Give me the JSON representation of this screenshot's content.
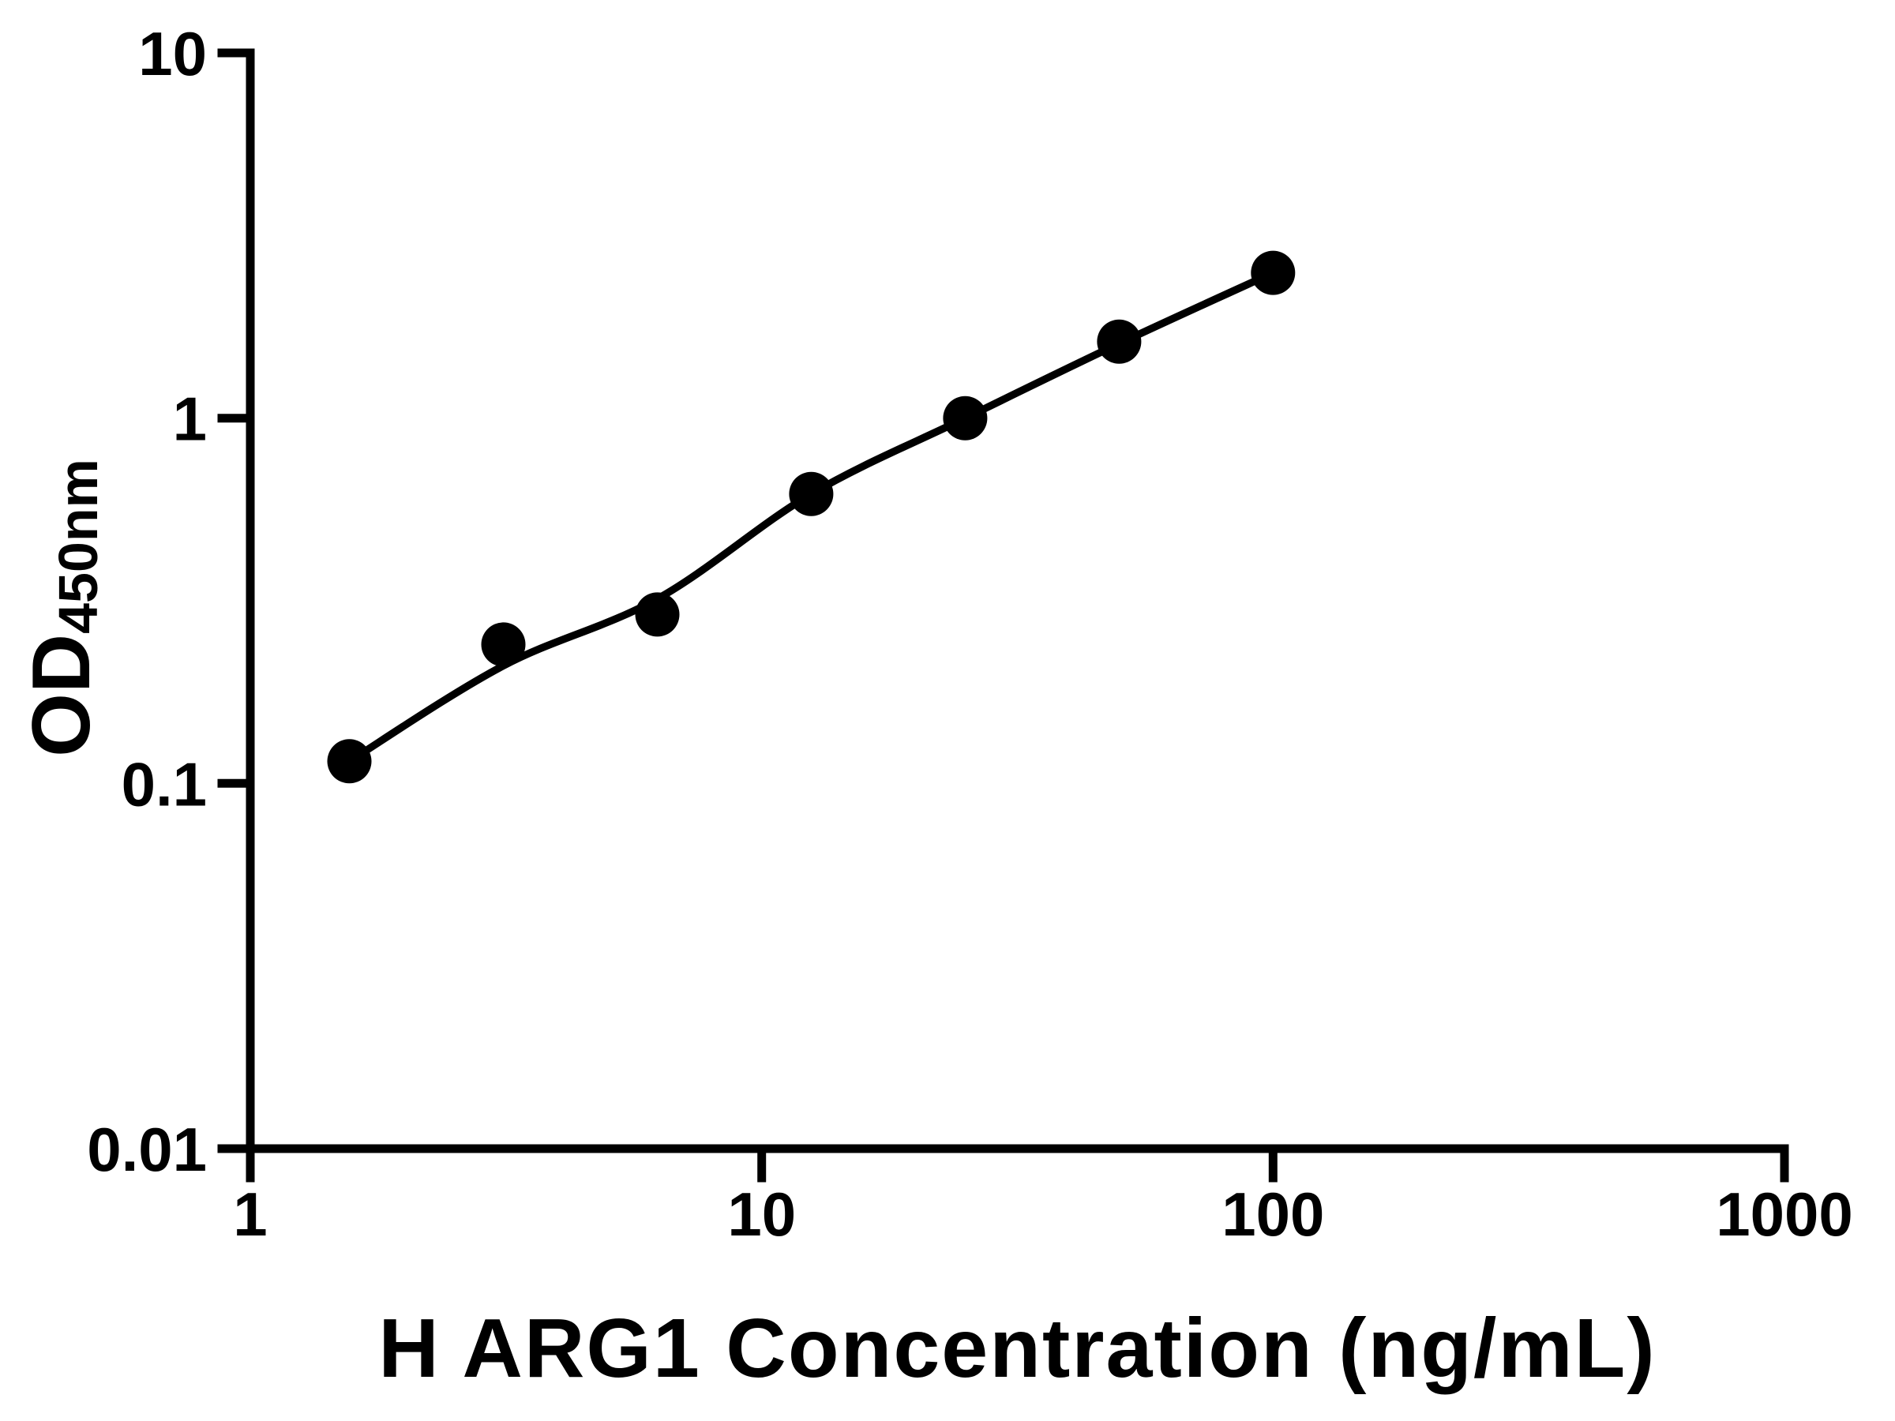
{
  "figure": {
    "background_color": "#ffffff",
    "foreground_color": "#000000"
  },
  "chart_data": {
    "type": "scatter",
    "title": "",
    "xlabel": "H ARG1 Concentration (ng/mL)",
    "ylabel_base": "OD",
    "ylabel_subscript": "450nm",
    "x_scale": "log10",
    "y_scale": "log10",
    "xlim": [
      1,
      1000
    ],
    "ylim": [
      0.01,
      10
    ],
    "grid": false,
    "legend": null,
    "x_ticks": [
      {
        "value": 1,
        "label": "1"
      },
      {
        "value": 10,
        "label": "10"
      },
      {
        "value": 100,
        "label": "100"
      },
      {
        "value": 1000,
        "label": "1000"
      }
    ],
    "y_ticks": [
      {
        "value": 10,
        "label": "10"
      },
      {
        "value": 1,
        "label": "1"
      },
      {
        "value": 0.1,
        "label": "0.1"
      },
      {
        "value": 0.01,
        "label": "0.01"
      }
    ],
    "series": [
      {
        "marker": "filled-circle",
        "color": "#000000",
        "points": [
          {
            "x": 1.5625,
            "y": 0.115
          },
          {
            "x": 3.125,
            "y": 0.24
          },
          {
            "x": 6.25,
            "y": 0.29
          },
          {
            "x": 12.5,
            "y": 0.62
          },
          {
            "x": 25,
            "y": 1.0
          },
          {
            "x": 50,
            "y": 1.62
          },
          {
            "x": 100,
            "y": 2.5
          }
        ]
      }
    ],
    "fit_curve": {
      "color": "#000000",
      "points": [
        {
          "x": 1.5625,
          "y": 0.115
        },
        {
          "x": 3.125,
          "y": 0.21
        },
        {
          "x": 6.25,
          "y": 0.32
        },
        {
          "x": 12.5,
          "y": 0.62
        },
        {
          "x": 25,
          "y": 1.0
        },
        {
          "x": 50,
          "y": 1.6
        },
        {
          "x": 100,
          "y": 2.5
        }
      ]
    }
  }
}
